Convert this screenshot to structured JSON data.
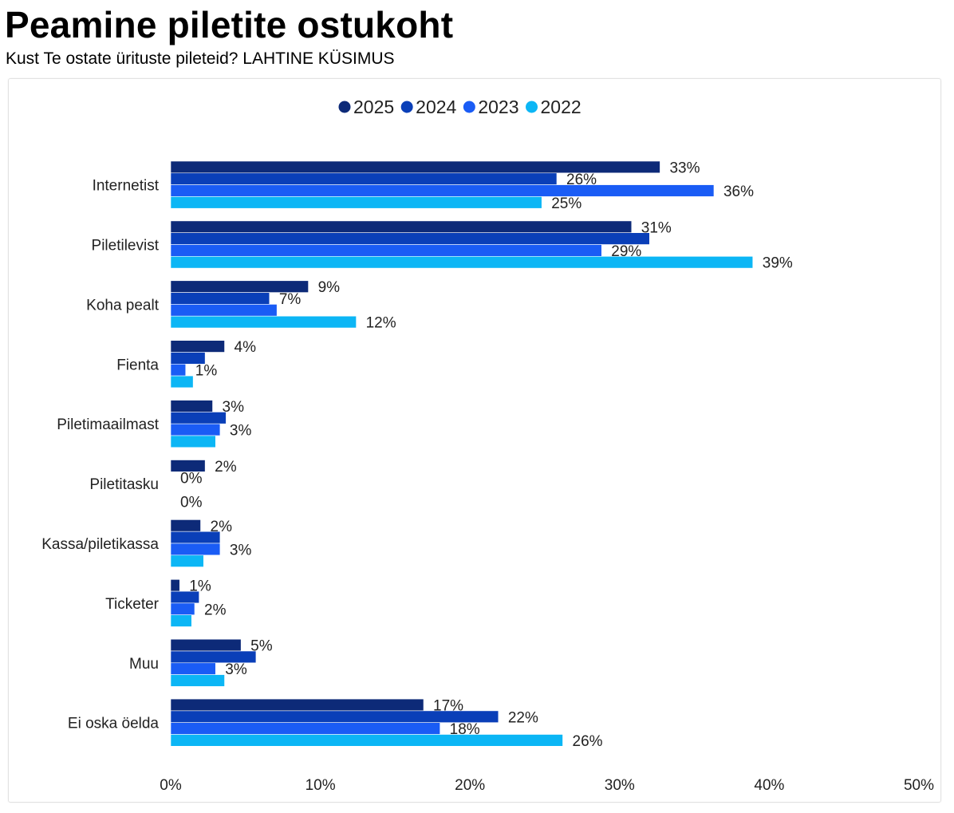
{
  "title": "Peamine piletite ostukoht",
  "subtitle": "Kust Te ostate ürituste pileteid? LAHTINE KÜSIMUS",
  "chart_data": {
    "type": "bar",
    "orientation": "horizontal",
    "categories": [
      "Internetist",
      "Piletilevist",
      "Koha pealt",
      "Fienta",
      "Piletimaailmast",
      "Piletitasku",
      "Kassa/piletikassa",
      "Ticketer",
      "Muu",
      "Ei oska öelda"
    ],
    "series": [
      {
        "name": "2025",
        "color": "#0d2a78",
        "values": [
          32.7,
          30.8,
          9.2,
          3.6,
          2.8,
          2.3,
          2.0,
          0.6,
          4.7,
          16.9
        ]
      },
      {
        "name": "2024",
        "color": "#0a3fb8",
        "values": [
          25.8,
          32.0,
          6.6,
          2.3,
          3.7,
          0,
          3.3,
          1.9,
          5.7,
          21.9
        ]
      },
      {
        "name": "2023",
        "color": "#1a5cf5",
        "values": [
          36.3,
          28.8,
          7.1,
          1.0,
          3.3,
          null,
          3.3,
          1.6,
          3.0,
          18.0
        ]
      },
      {
        "name": "2022",
        "color": "#0cb6f5",
        "values": [
          24.8,
          38.9,
          12.4,
          1.5,
          3.0,
          0,
          2.2,
          1.4,
          3.6,
          26.2
        ]
      }
    ],
    "data_labels": [
      [
        "33%",
        "26%",
        "36%",
        "25%"
      ],
      [
        "31%",
        "",
        "29%",
        "39%"
      ],
      [
        "9%",
        "7%",
        "",
        "12%"
      ],
      [
        "4%",
        "",
        "1%",
        ""
      ],
      [
        "3%",
        "",
        "3%",
        ""
      ],
      [
        "2%",
        "0%",
        "",
        "0%"
      ],
      [
        "2%",
        "",
        "3%",
        ""
      ],
      [
        "1%",
        "",
        "2%",
        ""
      ],
      [
        "5%",
        "",
        "3%",
        ""
      ],
      [
        "17%",
        "22%",
        "18%",
        "26%"
      ]
    ],
    "xlim": [
      0,
      50
    ],
    "xticks": [
      "0%",
      "10%",
      "20%",
      "30%",
      "40%",
      "50%"
    ],
    "legend_position": "top-center",
    "grid": false
  }
}
